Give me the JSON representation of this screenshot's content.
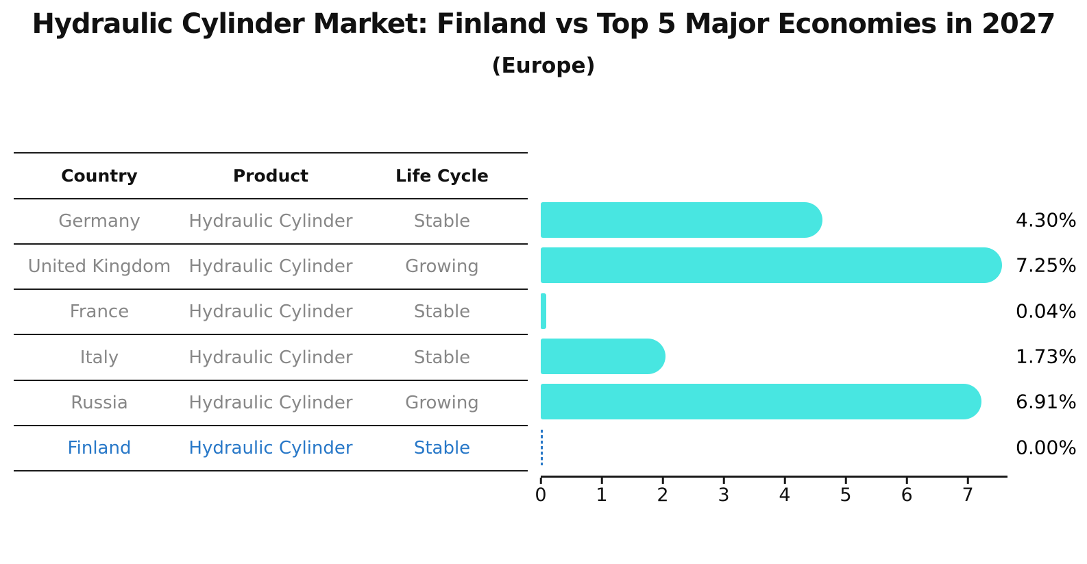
{
  "title": "Hydraulic Cylinder Market: Finland vs Top 5 Major Economies in 2027",
  "subtitle": "(Europe)",
  "table": {
    "headers": [
      "Country",
      "Product",
      "Life Cycle"
    ],
    "rows": [
      {
        "country": "Germany",
        "product": "Hydraulic Cylinder",
        "life_cycle": "Stable",
        "highlighted": false
      },
      {
        "country": "United Kingdom",
        "product": "Hydraulic Cylinder",
        "life_cycle": "Growing",
        "highlighted": false
      },
      {
        "country": "France",
        "product": "Hydraulic Cylinder",
        "life_cycle": "Stable",
        "highlighted": false
      },
      {
        "country": "Italy",
        "product": "Hydraulic Cylinder",
        "life_cycle": "Stable",
        "highlighted": false
      },
      {
        "country": "Russia",
        "product": "Hydraulic Cylinder",
        "life_cycle": "Growing",
        "highlighted": false
      },
      {
        "country": "Finland",
        "product": "Hydraulic Cylinder",
        "life_cycle": "Stable",
        "highlighted": true
      }
    ]
  },
  "colors": {
    "bar": "#48e6e1",
    "highlight": "#2878c8",
    "row_text": "#878787",
    "line": "#191919",
    "label_text": "#000000"
  },
  "chart_data": {
    "type": "bar",
    "orientation": "horizontal",
    "title": "Hydraulic Cylinder Market: Finland vs Top 5 Major Economies in 2027",
    "subtitle": "(Europe)",
    "categories": [
      "Germany",
      "United Kingdom",
      "France",
      "Italy",
      "Russia",
      "Finland"
    ],
    "values": [
      4.3,
      7.25,
      0.04,
      1.73,
      6.91,
      0.0
    ],
    "value_labels": [
      "4.30%",
      "7.25%",
      "0.04%",
      "1.73%",
      "6.91%",
      "0.00%"
    ],
    "xlabel": "",
    "ylabel": "",
    "xlim": [
      0,
      7.64
    ],
    "xticks": [
      0,
      1,
      2,
      3,
      4,
      5,
      6,
      7
    ],
    "grid": false,
    "legend": false,
    "highlight_index": 5,
    "bar_style": "rounded-right",
    "highlight_style": "dashed-outline-zero-bar"
  }
}
